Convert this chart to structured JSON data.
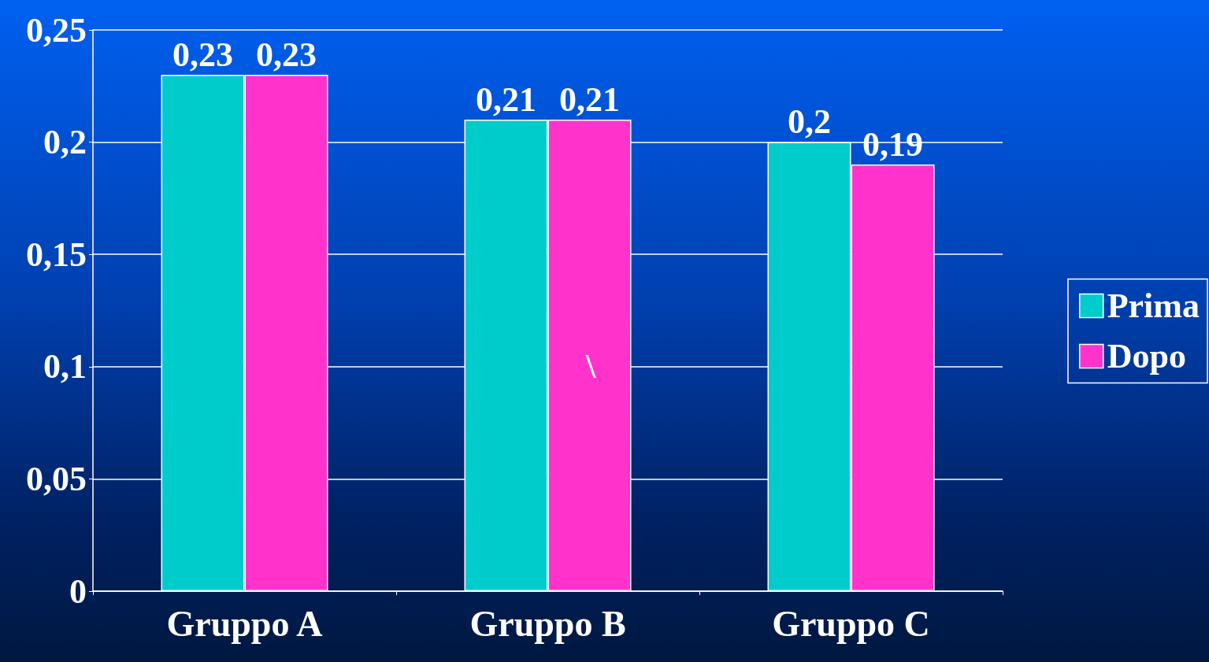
{
  "chart_data": {
    "type": "bar",
    "categories": [
      "Gruppo A",
      "Gruppo B",
      "Gruppo C"
    ],
    "series": [
      {
        "name": "Prima",
        "color": "#00cccc",
        "values": [
          0.23,
          0.21,
          0.2
        ],
        "value_labels": [
          "0,23",
          "0,21",
          "0,2"
        ]
      },
      {
        "name": "Dopo",
        "color": "#ff33cc",
        "values": [
          0.23,
          0.21,
          0.19
        ],
        "value_labels": [
          "0,23",
          "0,21",
          "0,19"
        ]
      }
    ],
    "ylim": [
      0,
      0.25
    ],
    "yticks": [
      {
        "value": 0,
        "label": "0"
      },
      {
        "value": 0.05,
        "label": "0,05"
      },
      {
        "value": 0.1,
        "label": "0,1"
      },
      {
        "value": 0.15,
        "label": "0,15"
      },
      {
        "value": 0.2,
        "label": "0,2"
      },
      {
        "value": 0.25,
        "label": "0,25"
      }
    ],
    "annotations": [
      "\\"
    ],
    "grid": "y",
    "legend": "right"
  }
}
